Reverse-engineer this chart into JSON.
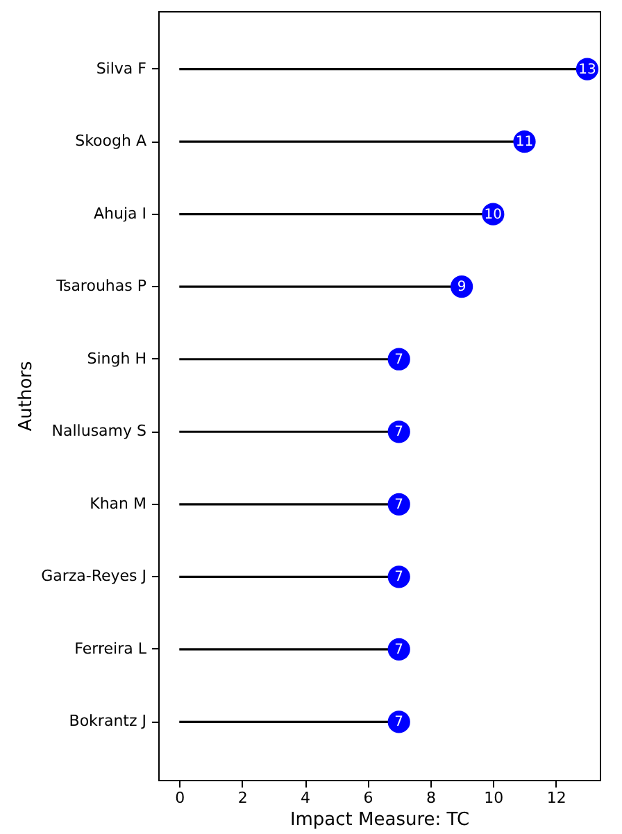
{
  "chart_data": {
    "type": "lollipop",
    "orientation": "horizontal",
    "xlabel": "Impact Measure: TC",
    "ylabel": "Authors",
    "categories": [
      "Silva F",
      "Skoogh A",
      "Ahuja I",
      "Tsarouhas P",
      "Singh H",
      "Nallusamy S",
      "Khan M",
      "Garza-Reyes J",
      "Ferreira L",
      "Bokrantz J"
    ],
    "values": [
      13,
      11,
      10,
      9,
      7,
      7,
      7,
      7,
      7,
      7
    ],
    "color": "#0000ff",
    "xlim": [
      -0.67,
      13.4
    ],
    "xticks": [
      0,
      2,
      4,
      6,
      8,
      10,
      12
    ],
    "data_labels": true,
    "grid": false,
    "marker": "circle"
  }
}
